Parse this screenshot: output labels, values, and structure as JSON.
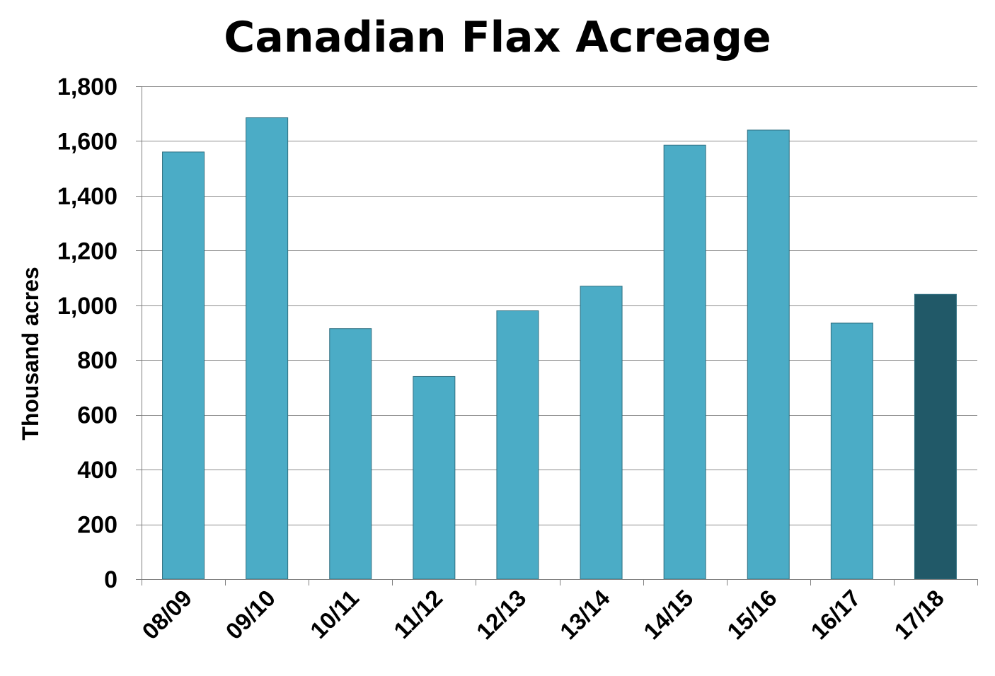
{
  "chart_data": {
    "type": "bar",
    "title": "Canadian Flax Acreage",
    "xlabel": "",
    "ylabel": "Thousand acres",
    "categories": [
      "08/09",
      "09/10",
      "10/11",
      "11/12",
      "12/13",
      "13/14",
      "14/15",
      "15/16",
      "16/17",
      "17/18"
    ],
    "values": [
      1560,
      1685,
      915,
      740,
      980,
      1070,
      1585,
      1640,
      935,
      1040
    ],
    "ylim": [
      0,
      1800
    ],
    "yticks": [
      0,
      200,
      400,
      600,
      800,
      1000,
      1200,
      1400,
      1600,
      1800
    ],
    "ytick_labels": [
      "0",
      "200",
      "400",
      "600",
      "800",
      "1,000",
      "1,200",
      "1,400",
      "1,600",
      "1,800"
    ],
    "grid": true,
    "legend": "none",
    "colors": {
      "bar": "#4bacc6",
      "bar_highlight": "#215968",
      "bar_outline": "#2f6f80",
      "grid": "#8c8c8c",
      "axis": "#7f7f7f"
    },
    "highlight_index": 9
  }
}
